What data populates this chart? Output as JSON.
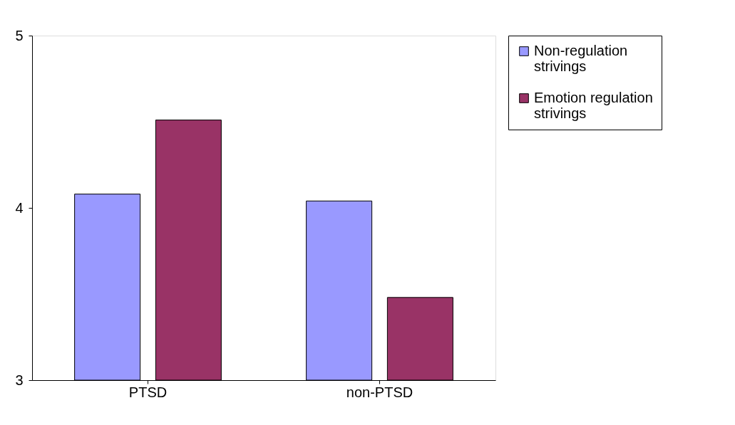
{
  "chart_data": {
    "type": "bar",
    "categories": [
      "PTSD",
      "non-PTSD"
    ],
    "series": [
      {
        "name": "Non-regulation strivings",
        "color": "#9999ff",
        "values": [
          4.08,
          4.04
        ]
      },
      {
        "name": "Emotion regulation strivings",
        "color": "#993366",
        "values": [
          4.51,
          3.48
        ]
      }
    ],
    "ylim": [
      3,
      5
    ],
    "yticks": [
      {
        "value": 3,
        "label": "3"
      },
      {
        "value": 4,
        "label": "4"
      },
      {
        "value": 5,
        "label": "5"
      }
    ],
    "grid": false,
    "legend": "right"
  }
}
